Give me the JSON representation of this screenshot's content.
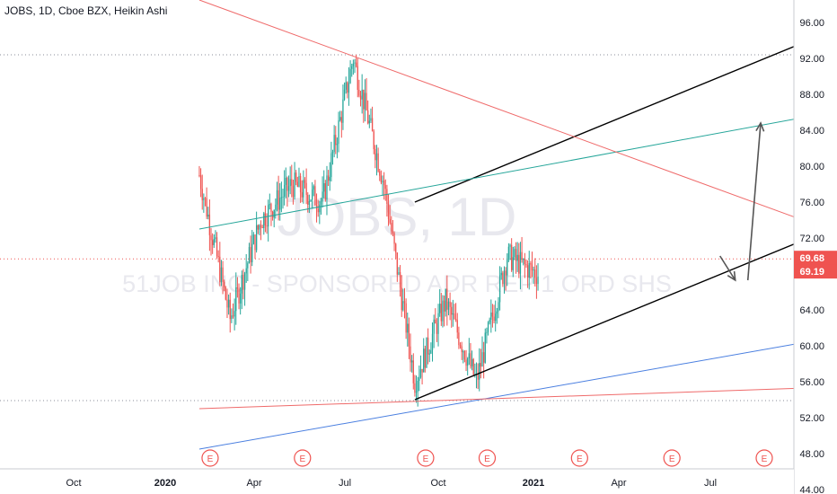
{
  "header": {
    "title": "JOBS, 1D, Cboe BZX, Heikin Ashi"
  },
  "watermark": {
    "symbol": "JOBS, 1D",
    "description": "51JOB INC - SPONSORED ADR REP 1 ORD SHS"
  },
  "colors": {
    "up": "#26a69a",
    "down": "#ef5350",
    "price_tag": "#ef5350",
    "channel": "#000000",
    "green_trend": "#26a69a",
    "blue_trend": "#4a7fe0",
    "red_trend": "#ef6a6a",
    "arrow": "#555555"
  },
  "chart_data": {
    "type": "candlestick",
    "title": "JOBS, 1D, Cboe BZX, Heikin Ashi",
    "x_axis": {
      "ticks": [
        "Oct",
        "2020",
        "Apr",
        "Jul",
        "Oct",
        "2021",
        "Apr",
        "Jul"
      ],
      "bold_ticks": [
        "2020",
        "2021"
      ]
    },
    "y_axis": {
      "range": [
        43.5,
        98.5
      ],
      "ticks": [
        96,
        92,
        88,
        84,
        80,
        76,
        72,
        68,
        64,
        60,
        56,
        52,
        48,
        44
      ],
      "tick_labels": [
        "96.00",
        "92.00",
        "88.00",
        "84.00",
        "80.00",
        "76.00",
        "72.00",
        "68.00",
        "64.00",
        "60.00",
        "56.00",
        "52.00",
        "48.00",
        "44.00"
      ]
    },
    "price_labels": [
      {
        "text": "69.68",
        "value": 69.68
      },
      {
        "text": "69.19",
        "value": 69.19
      }
    ],
    "dotted_levels": [
      92.4,
      69.68,
      53.9
    ],
    "events_label": "E",
    "events": [
      "Aug 2019",
      "Nov 2019",
      "Mar 2020",
      "May 2020",
      "Aug 2020",
      "Nov 2020",
      "Feb 2021"
    ],
    "series_keyframes": [
      {
        "x": "Aug 2019",
        "close": 79
      },
      {
        "x": "Sep 2019",
        "close": 63
      },
      {
        "x": "Oct 2019",
        "close": 74
      },
      {
        "x": "Nov 2019",
        "close": 78
      },
      {
        "x": "Dec 2019",
        "close": 76
      },
      {
        "x": "Jan 2020",
        "close": 92
      },
      {
        "x": "Feb 2020",
        "close": 78
      },
      {
        "x": "Mar 2020",
        "close": 56
      },
      {
        "x": "Apr 2020",
        "close": 65
      },
      {
        "x": "May 2020",
        "close": 56
      },
      {
        "x": "Jun 2020",
        "close": 70
      },
      {
        "x": "Jul 2020",
        "close": 68
      },
      {
        "x": "Aug 2020",
        "close": 68
      },
      {
        "x": "Sep 2020",
        "close": 68
      },
      {
        "x": "Oct 2020",
        "close": 78
      },
      {
        "x": "Nov 2020",
        "close": 65
      },
      {
        "x": "Dec 2020",
        "close": 73
      },
      {
        "x": "Jan 2021",
        "close": 69.2
      }
    ],
    "trend_lines": [
      {
        "name": "channel-upper",
        "from": [
          "Mar 2020",
          76
        ],
        "to": [
          "Jul 2021",
          98.5
        ]
      },
      {
        "name": "channel-lower",
        "from": [
          "Mar 2020",
          54
        ],
        "to": [
          "Jul 2021",
          76.5
        ]
      },
      {
        "name": "green-trend",
        "from": [
          "Aug 2019",
          73
        ],
        "to": [
          "Aug 2021",
          88.2
        ]
      },
      {
        "name": "blue-trend",
        "from": [
          "Aug 2019",
          48.5
        ],
        "to": [
          "Aug 2021",
          63
        ]
      },
      {
        "name": "red-support",
        "from": [
          "Aug 2019",
          53
        ],
        "to": [
          "Aug 2021",
          55.8
        ]
      },
      {
        "name": "red-resistance",
        "from": [
          "Aug 2019",
          98.5
        ],
        "to": [
          "Aug 2021",
          68.5
        ]
      },
      {
        "name": "blue-trend-2",
        "from": [
          "Apr 2021",
          43.5
        ],
        "to": [
          "Aug 2021",
          45
        ]
      }
    ],
    "projection_arrows": [
      {
        "from": [
          "Jan 2021",
          70
        ],
        "to": [
          "Jan 2021",
          67.3
        ]
      },
      {
        "from": [
          "Jan 2021",
          67.3
        ],
        "to": [
          "Feb 2021",
          84.8
        ]
      }
    ]
  }
}
